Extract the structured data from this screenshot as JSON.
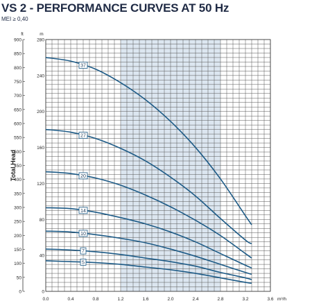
{
  "chart_data": {
    "type": "line",
    "title": "VS 2 - PERFORMANCE CURVES AT 50 Hz",
    "subtitle": "MEI ≥ 0,40",
    "ylabel": "Total Head",
    "y_left_unit": "ft",
    "y_right_unit": "m",
    "x_unit": "m³/h",
    "xlim": [
      0,
      3.6
    ],
    "ylim_m": [
      0,
      280
    ],
    "ylim_ft": [
      0,
      900
    ],
    "x_ticks": [
      "0.0",
      "0.4",
      "0.8",
      "1.2",
      "1.6",
      "2.0",
      "2.4",
      "2.8",
      "3.2",
      "3.6"
    ],
    "y_m_ticks": [
      "0",
      "40",
      "80",
      "120",
      "160",
      "200",
      "240",
      "280"
    ],
    "y_ft_ticks": [
      "0",
      "50",
      "100",
      "150",
      "200",
      "250",
      "300",
      "350",
      "400",
      "450",
      "500",
      "550",
      "600",
      "650",
      "700",
      "750",
      "800",
      "850",
      "900"
    ],
    "grid": true,
    "highlight_band": {
      "x": [
        1.2,
        2.8
      ],
      "color": "#dce6f0"
    },
    "line_color": "#1c5a86",
    "series": [
      {
        "name": "37",
        "x": [
          0,
          0.4,
          0.8,
          1.2,
          1.6,
          2.0,
          2.4,
          2.8,
          3.2,
          3.3
        ],
        "y": [
          260,
          256,
          247,
          232,
          213,
          189,
          160,
          125,
          84,
          74
        ]
      },
      {
        "name": "27",
        "x": [
          0,
          0.4,
          0.8,
          1.2,
          1.6,
          2.0,
          2.4,
          2.8,
          3.2,
          3.3
        ],
        "y": [
          180,
          177,
          170,
          159,
          145,
          127,
          106,
          81,
          57,
          53
        ]
      },
      {
        "name": "20",
        "x": [
          0,
          0.4,
          0.8,
          1.2,
          1.6,
          2.0,
          2.4,
          2.8,
          3.2,
          3.3
        ],
        "y": [
          133,
          131,
          126,
          118,
          107,
          94,
          79,
          62,
          42,
          37
        ]
      },
      {
        "name": "14",
        "x": [
          0,
          0.4,
          0.8,
          1.2,
          1.6,
          2.0,
          2.4,
          2.8,
          3.2,
          3.3
        ],
        "y": [
          93,
          92,
          88,
          82,
          75,
          66,
          55,
          42,
          29,
          26
        ]
      },
      {
        "name": "10",
        "x": [
          0,
          0.4,
          0.8,
          1.2,
          1.6,
          2.0,
          2.4,
          2.8,
          3.2,
          3.3
        ],
        "y": [
          67,
          66,
          63,
          59,
          54,
          47,
          39,
          30,
          21,
          19
        ]
      },
      {
        "name": "7",
        "x": [
          0,
          0.4,
          0.8,
          1.2,
          1.6,
          2.0,
          2.4,
          2.8,
          3.2,
          3.3
        ],
        "y": [
          47,
          46,
          44,
          41,
          37,
          33,
          28,
          21,
          15,
          13
        ]
      },
      {
        "name": "5",
        "x": [
          0,
          0.4,
          0.8,
          1.2,
          1.6,
          2.0,
          2.4,
          2.8,
          3.2,
          3.3
        ],
        "y": [
          34,
          33,
          32,
          30,
          27,
          24,
          20,
          15,
          10,
          9
        ]
      }
    ]
  }
}
